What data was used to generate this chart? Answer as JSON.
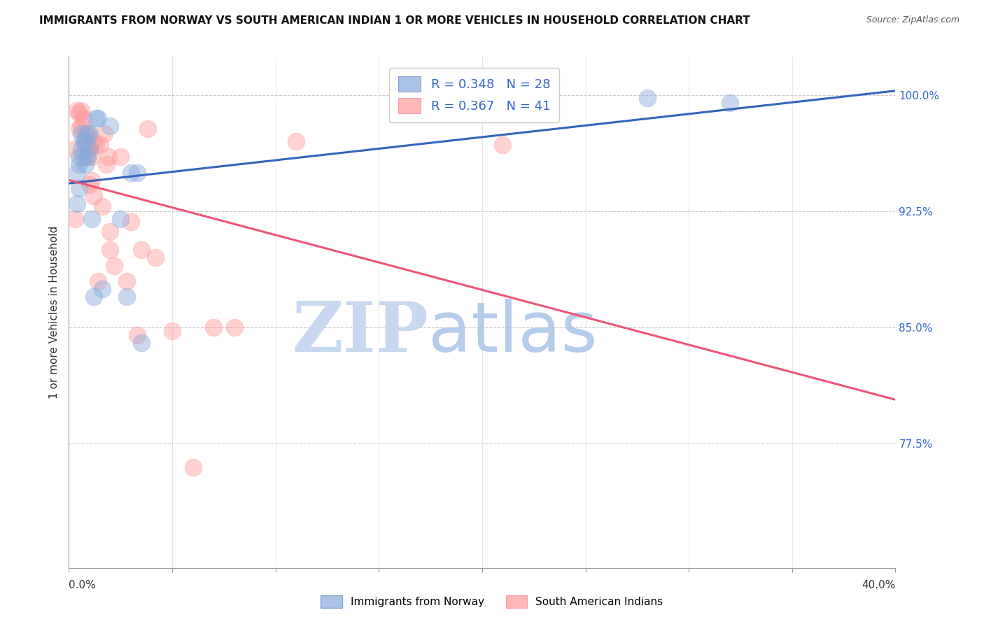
{
  "title": "IMMIGRANTS FROM NORWAY VS SOUTH AMERICAN INDIAN 1 OR MORE VEHICLES IN HOUSEHOLD CORRELATION CHART",
  "source": "Source: ZipAtlas.com",
  "ylabel": "1 or more Vehicles in Household",
  "ytick_values": [
    1.0,
    0.925,
    0.85,
    0.775
  ],
  "ytick_labels": [
    "100.0%",
    "92.5%",
    "85.0%",
    "77.5%"
  ],
  "xlim": [
    0.0,
    0.4
  ],
  "ylim": [
    0.695,
    1.025
  ],
  "legend_blue_R": "0.348",
  "legend_blue_N": "28",
  "legend_pink_R": "0.367",
  "legend_pink_N": "41",
  "blue_scatter_color": "#88AADD",
  "pink_scatter_color": "#FF9999",
  "blue_line_color": "#3366BB",
  "pink_line_color": "#EE5577",
  "norway_x": [
    0.004,
    0.004,
    0.005,
    0.005,
    0.005,
    0.006,
    0.006,
    0.007,
    0.007,
    0.008,
    0.008,
    0.009,
    0.009,
    0.01,
    0.01,
    0.011,
    0.012,
    0.013,
    0.014,
    0.016,
    0.02,
    0.025,
    0.028,
    0.03,
    0.033,
    0.035,
    0.28,
    0.32
  ],
  "norway_y": [
    0.93,
    0.95,
    0.955,
    0.96,
    0.94,
    0.965,
    0.975,
    0.96,
    0.97,
    0.955,
    0.97,
    0.96,
    0.975,
    0.965,
    0.975,
    0.92,
    0.87,
    0.985,
    0.985,
    0.875,
    0.98,
    0.92,
    0.87,
    0.95,
    0.95,
    0.84,
    0.998,
    0.995
  ],
  "sai_x": [
    0.003,
    0.003,
    0.004,
    0.005,
    0.005,
    0.006,
    0.006,
    0.007,
    0.008,
    0.008,
    0.009,
    0.009,
    0.01,
    0.01,
    0.011,
    0.011,
    0.012,
    0.012,
    0.013,
    0.014,
    0.015,
    0.016,
    0.017,
    0.018,
    0.019,
    0.02,
    0.02,
    0.022,
    0.025,
    0.028,
    0.03,
    0.033,
    0.035,
    0.038,
    0.042,
    0.05,
    0.06,
    0.07,
    0.08,
    0.11,
    0.21
  ],
  "sai_y": [
    0.92,
    0.965,
    0.99,
    0.988,
    0.978,
    0.99,
    0.98,
    0.985,
    0.968,
    0.975,
    0.975,
    0.96,
    0.942,
    0.967,
    0.96,
    0.945,
    0.935,
    0.97,
    0.968,
    0.88,
    0.968,
    0.928,
    0.975,
    0.955,
    0.96,
    0.912,
    0.9,
    0.89,
    0.96,
    0.88,
    0.918,
    0.845,
    0.9,
    0.978,
    0.895,
    0.848,
    0.76,
    0.85,
    0.85,
    0.97,
    0.968
  ],
  "watermark_zip_color": "#C8D8F0",
  "watermark_atlas_color": "#A8C4E8"
}
